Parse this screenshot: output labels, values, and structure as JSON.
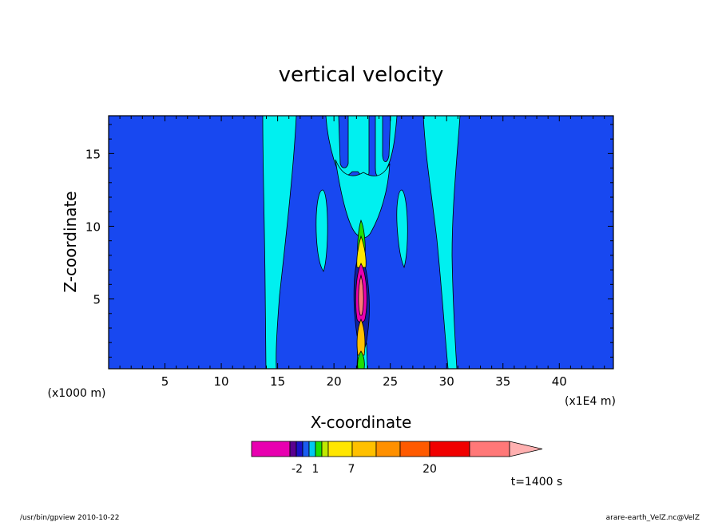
{
  "chart_data": {
    "type": "heatmap",
    "title": "vertical velocity",
    "xlabel": "X-coordinate",
    "ylabel": "Z-coordinate",
    "x_unit_label": "(x1E4 m)",
    "y_unit_label": "(x1000 m)",
    "xlim": [
      0,
      44.8
    ],
    "ylim": [
      0.2,
      17.6
    ],
    "x_ticks": [
      5,
      10,
      15,
      20,
      25,
      30,
      35,
      40
    ],
    "y_ticks": [
      5,
      10,
      15
    ],
    "time_label": "t=1400 s",
    "colorbar": {
      "colors": [
        "#e800b0",
        "#5a0090",
        "#1a10c8",
        "#1a5cf0",
        "#00c8f0",
        "#20e000",
        "#c0e800",
        "#ffe600",
        "#ffc000",
        "#ff9000",
        "#ff5a00",
        "#f00000",
        "#ff7878",
        "#ffb0b0"
      ],
      "tick_labels": [
        "-2",
        "1",
        "7",
        "20"
      ]
    },
    "field_colors": {
      "background": "#1848f0",
      "positive_band": "#00f0f0",
      "negative_core": "#1020a0",
      "outline": "#000000"
    }
  },
  "footer": {
    "left": "/usr/bin/gpview   2010-10-22",
    "right": "arare-earth_VelZ.nc@VelZ"
  }
}
